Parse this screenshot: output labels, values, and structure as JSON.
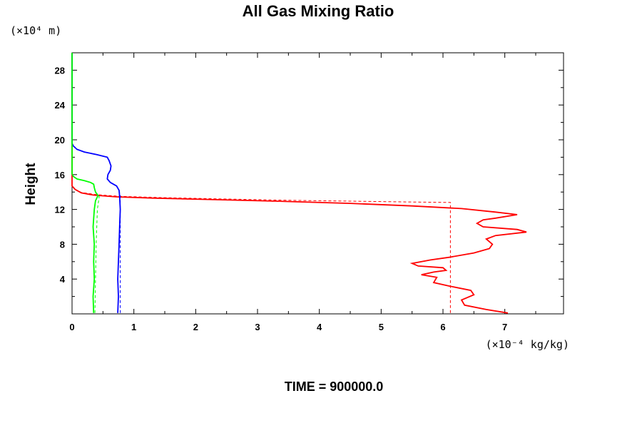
{
  "chart_data": {
    "type": "line",
    "title": "All Gas Mixing Ratio",
    "ylabel": "Height",
    "y_unit": "(×10⁴ m)",
    "x_unit": "(×10⁻⁴ kg/kg)",
    "footer": "TIME = 900000.0",
    "xlim": [
      0,
      7.95
    ],
    "ylim": [
      0,
      30
    ],
    "x_ticks": [
      0,
      1,
      2,
      3,
      4,
      5,
      6,
      7
    ],
    "y_ticks": [
      4,
      8,
      12,
      16,
      20,
      24,
      28
    ],
    "series": [
      {
        "color": "#ff0000",
        "style": "solid",
        "points": [
          [
            7.05,
            0.1
          ],
          [
            6.7,
            0.5
          ],
          [
            6.35,
            1.0
          ],
          [
            6.3,
            1.6
          ],
          [
            6.5,
            2.2
          ],
          [
            6.45,
            2.7
          ],
          [
            6.1,
            3.2
          ],
          [
            5.85,
            3.6
          ],
          [
            5.9,
            4.2
          ],
          [
            5.65,
            4.5
          ],
          [
            5.85,
            4.8
          ],
          [
            6.05,
            5.0
          ],
          [
            6.0,
            5.3
          ],
          [
            5.6,
            5.5
          ],
          [
            5.5,
            5.8
          ],
          [
            5.8,
            6.2
          ],
          [
            6.1,
            6.5
          ],
          [
            6.5,
            7.0
          ],
          [
            6.75,
            7.5
          ],
          [
            6.8,
            8.0
          ],
          [
            6.7,
            8.6
          ],
          [
            6.85,
            9.0
          ],
          [
            7.35,
            9.4
          ],
          [
            7.2,
            9.7
          ],
          [
            6.65,
            10.0
          ],
          [
            6.55,
            10.4
          ],
          [
            6.65,
            10.8
          ],
          [
            6.85,
            11.0
          ],
          [
            7.2,
            11.4
          ],
          [
            6.85,
            11.7
          ],
          [
            6.3,
            12.1
          ],
          [
            5.5,
            12.4
          ],
          [
            4.5,
            12.7
          ],
          [
            3.3,
            12.95
          ],
          [
            2.2,
            13.15
          ],
          [
            1.3,
            13.3
          ],
          [
            0.7,
            13.45
          ],
          [
            0.35,
            13.65
          ],
          [
            0.15,
            13.9
          ],
          [
            0.05,
            14.3
          ],
          [
            0.0,
            14.7
          ],
          [
            0.0,
            30.0
          ]
        ]
      },
      {
        "color": "#ff0000",
        "style": "dashed",
        "points": [
          [
            6.12,
            0.1
          ],
          [
            6.12,
            12.8
          ],
          [
            5.5,
            12.85
          ],
          [
            4.5,
            12.95
          ],
          [
            3.5,
            13.05
          ],
          [
            2.5,
            13.2
          ],
          [
            1.5,
            13.35
          ],
          [
            0.8,
            13.5
          ],
          [
            0.4,
            13.7
          ],
          [
            0.15,
            13.95
          ],
          [
            0.05,
            14.3
          ],
          [
            0.0,
            14.7
          ]
        ]
      },
      {
        "color": "#0000ff",
        "style": "solid",
        "points": [
          [
            0.74,
            0.1
          ],
          [
            0.75,
            2.0
          ],
          [
            0.74,
            4.0
          ],
          [
            0.75,
            6.0
          ],
          [
            0.76,
            8.0
          ],
          [
            0.77,
            10.0
          ],
          [
            0.78,
            12.0
          ],
          [
            0.77,
            13.5
          ],
          [
            0.76,
            14.2
          ],
          [
            0.72,
            14.7
          ],
          [
            0.62,
            15.1
          ],
          [
            0.57,
            15.5
          ],
          [
            0.58,
            16.0
          ],
          [
            0.62,
            16.5
          ],
          [
            0.63,
            17.0
          ],
          [
            0.6,
            17.6
          ],
          [
            0.57,
            18.0
          ],
          [
            0.4,
            18.3
          ],
          [
            0.2,
            18.6
          ],
          [
            0.08,
            18.9
          ],
          [
            0.02,
            19.3
          ],
          [
            0.0,
            19.6
          ],
          [
            0.0,
            30.0
          ]
        ]
      },
      {
        "color": "#0000ff",
        "style": "dashed",
        "points": [
          [
            0.78,
            0.1
          ],
          [
            0.78,
            6.0
          ],
          [
            0.78,
            12.0
          ],
          [
            0.78,
            13.6
          ],
          [
            0.76,
            14.2
          ]
        ]
      },
      {
        "color": "#00ff00",
        "style": "solid",
        "points": [
          [
            0.35,
            0.1
          ],
          [
            0.34,
            2.0
          ],
          [
            0.36,
            4.0
          ],
          [
            0.35,
            6.0
          ],
          [
            0.36,
            8.0
          ],
          [
            0.34,
            10.0
          ],
          [
            0.36,
            12.0
          ],
          [
            0.38,
            13.0
          ],
          [
            0.42,
            13.6
          ],
          [
            0.38,
            14.0
          ],
          [
            0.36,
            14.5
          ],
          [
            0.35,
            14.9
          ],
          [
            0.3,
            15.1
          ],
          [
            0.2,
            15.3
          ],
          [
            0.08,
            15.5
          ],
          [
            0.02,
            15.8
          ],
          [
            0.0,
            16.1
          ],
          [
            0.0,
            30.0
          ]
        ]
      },
      {
        "color": "#00ff00",
        "style": "dashed",
        "points": [
          [
            0.37,
            0.1
          ],
          [
            0.38,
            4.0
          ],
          [
            0.39,
            8.0
          ],
          [
            0.41,
            12.0
          ],
          [
            0.44,
            13.5
          ],
          [
            0.38,
            14.0
          ],
          [
            0.36,
            14.5
          ]
        ]
      }
    ]
  }
}
